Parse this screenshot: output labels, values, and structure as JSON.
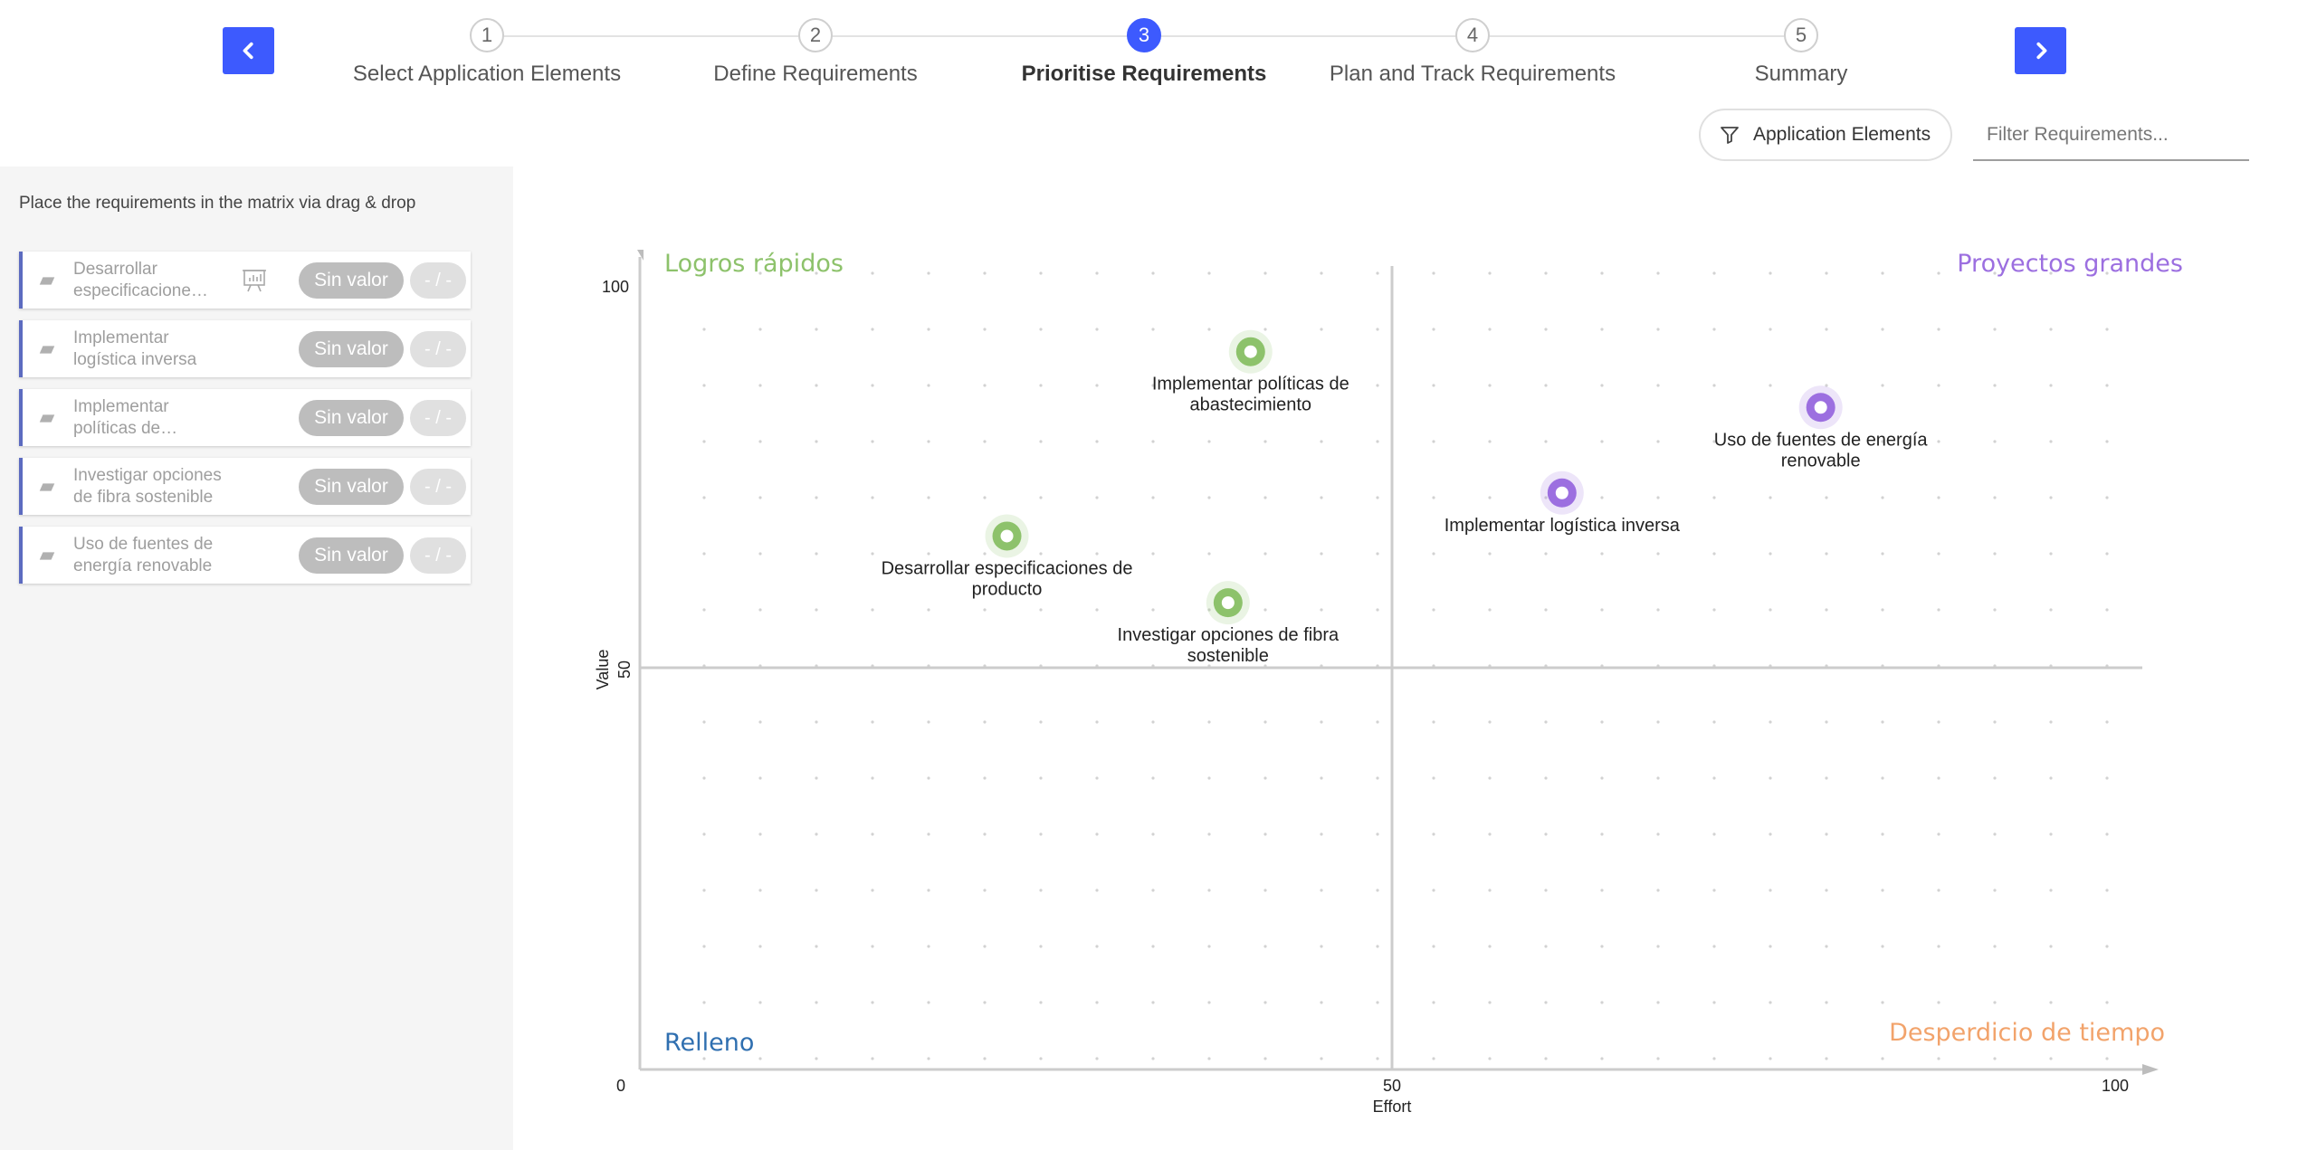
{
  "stepper": {
    "steps": [
      {
        "number": "1",
        "label": "Select Application Elements",
        "active": false
      },
      {
        "number": "2",
        "label": "Define Requirements",
        "active": false
      },
      {
        "number": "3",
        "label": "Prioritise Requirements",
        "active": true
      },
      {
        "number": "4",
        "label": "Plan and Track Requirements",
        "active": false
      },
      {
        "number": "5",
        "label": "Summary",
        "active": false
      }
    ],
    "prev_icon": "chevron-left-icon",
    "next_icon": "chevron-right-icon",
    "accent_color": "#3d5afe"
  },
  "toolbar": {
    "filter_button_label": "Application Elements",
    "filter_icon": "funnel-icon",
    "search_placeholder": "Filter Requirements..."
  },
  "sidebar": {
    "instructions": "Place the requirements in the matrix via drag & drop",
    "items": [
      {
        "label": "Desarrollar especificacione…",
        "value": "Sin valor",
        "effort": "- / -",
        "has_chart_icon": true
      },
      {
        "label": "Implementar logística inversa",
        "value": "Sin valor",
        "effort": "- / -",
        "has_chart_icon": false
      },
      {
        "label": "Implementar políticas de abastecimiento",
        "value": "Sin valor",
        "effort": "- / -",
        "has_chart_icon": false
      },
      {
        "label": "Investigar opciones de fibra sostenible",
        "value": "Sin valor",
        "effort": "- / -",
        "has_chart_icon": false
      },
      {
        "label": "Uso de fuentes de energía renovable",
        "value": "Sin valor",
        "effort": "- / -",
        "has_chart_icon": false
      }
    ]
  },
  "chart_data": {
    "type": "scatter",
    "xlabel": "Effort",
    "ylabel": "Value",
    "xlim": [
      0,
      100
    ],
    "ylim": [
      0,
      100
    ],
    "x_ticks": [
      "0",
      "50",
      "100"
    ],
    "y_ticks": [
      "100",
      "50"
    ],
    "grid": "dotted",
    "quadrants": {
      "top_left": {
        "label": "Logros rápidos",
        "color": "#8dc26b"
      },
      "top_right": {
        "label": "Proyectos grandes",
        "color": "#9c6fe0"
      },
      "bottom_left": {
        "label": "Relleno",
        "color": "#2f6fb0"
      },
      "bottom_right": {
        "label": "Desperdicio de tiempo",
        "color": "#f2a36b"
      }
    },
    "points": [
      {
        "label": "Implementar políticas de abastecimiento",
        "x": 40.6,
        "y": 91.5,
        "quadrant": "top_left"
      },
      {
        "label": "Uso de fuentes de energía renovable",
        "x": 78.5,
        "y": 84.4,
        "quadrant": "top_right"
      },
      {
        "label": "Implementar logística inversa",
        "x": 61.3,
        "y": 73.5,
        "quadrant": "top_right"
      },
      {
        "label": "Desarrollar especificaciones de producto",
        "x": 24.4,
        "y": 68.0,
        "quadrant": "top_left"
      },
      {
        "label": "Investigar opciones de fibra sostenible",
        "x": 39.1,
        "y": 59.5,
        "quadrant": "top_left"
      }
    ]
  }
}
